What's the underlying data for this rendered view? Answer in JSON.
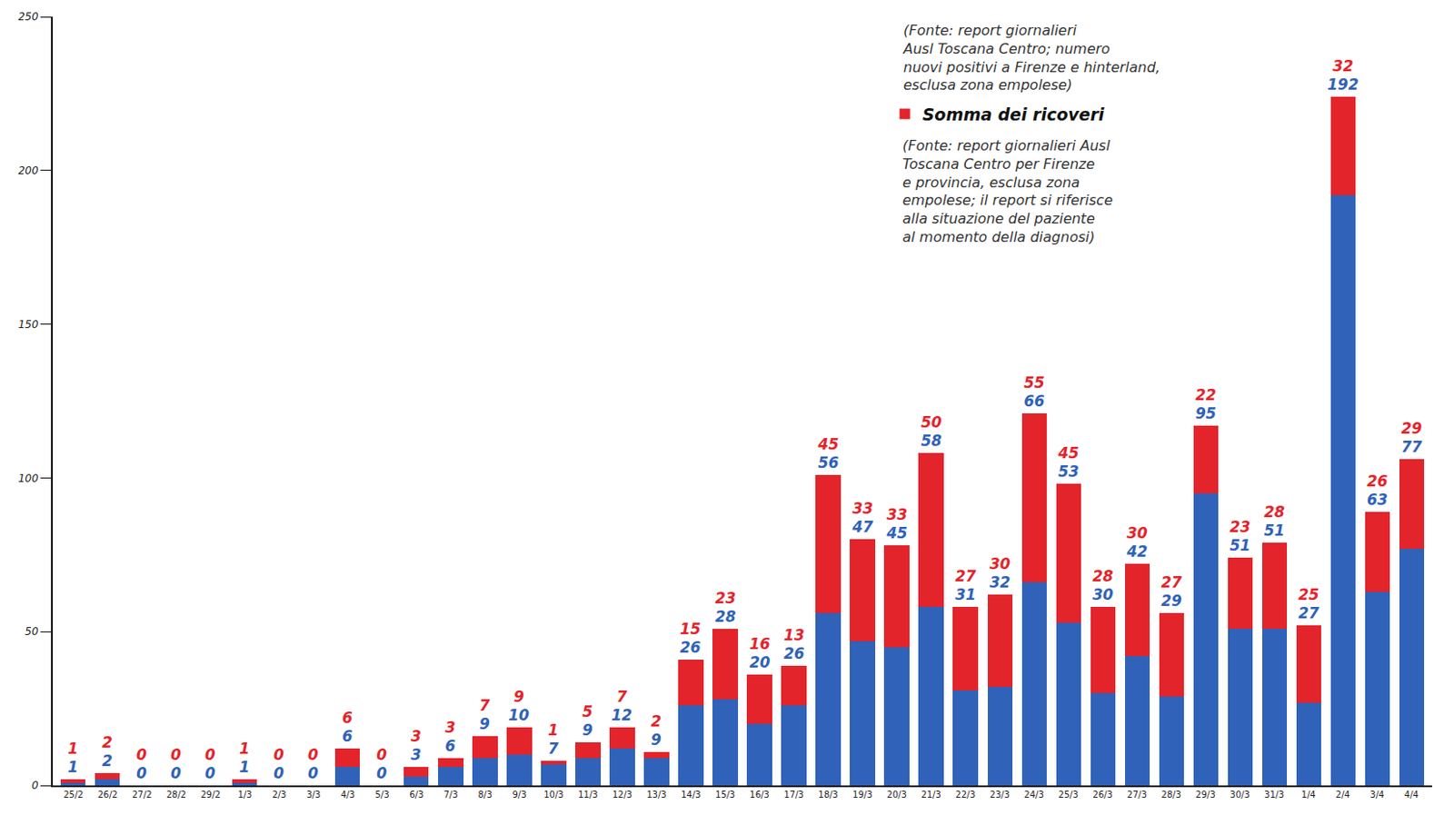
{
  "chart_data": {
    "type": "bar",
    "stacked": true,
    "data_labels": true,
    "grid": false,
    "legend": "top right",
    "categories": [
      "25/2",
      "26/2",
      "27/2",
      "28/2",
      "29/2",
      "1/3",
      "2/3",
      "3/3",
      "4/3",
      "5/3",
      "6/3",
      "7/3",
      "8/3",
      "9/3",
      "10/3",
      "11/3",
      "12/3",
      "13/3",
      "14/3",
      "15/3",
      "16/3",
      "17/3",
      "18/3",
      "19/3",
      "20/3",
      "21/3",
      "22/3",
      "23/3",
      "24/3",
      "25/3",
      "26/3",
      "27/3",
      "28/3",
      "29/3",
      "30/3",
      "31/3",
      "1/4",
      "2/4",
      "3/4",
      "4/4"
    ],
    "series": [
      {
        "color": "#2f62b8",
        "values": [
          1,
          2,
          0,
          0,
          0,
          1,
          0,
          0,
          6,
          0,
          3,
          6,
          9,
          10,
          7,
          9,
          12,
          9,
          26,
          28,
          20,
          26,
          56,
          47,
          45,
          58,
          31,
          32,
          66,
          53,
          30,
          42,
          29,
          95,
          51,
          51,
          27,
          192,
          63,
          77
        ]
      },
      {
        "name": "Somma dei ricoveri",
        "color": "#e3242b",
        "values": [
          1,
          2,
          0,
          0,
          0,
          1,
          0,
          0,
          6,
          0,
          3,
          3,
          7,
          9,
          1,
          5,
          7,
          2,
          15,
          23,
          16,
          13,
          45,
          33,
          33,
          50,
          27,
          30,
          55,
          45,
          28,
          30,
          27,
          22,
          23,
          28,
          25,
          32,
          26,
          29
        ]
      }
    ],
    "annotations": [
      [
        "(Fonte: report giornalieri",
        "Ausl Toscana Centro; numero",
        "nuovi positivi a Firenze e hinterland,",
        "esclusa zona empolese)"
      ],
      [
        "(Fonte: report giornalieri Ausl",
        "Toscana Centro per Firenze",
        "e provincia, esclusa zona",
        "empolese; il report si riferisce",
        "alla situazione del paziente",
        "al momento della diagnosi)"
      ]
    ],
    "ylim": [
      0,
      250
    ],
    "yticks": [
      0,
      50,
      100,
      150,
      200,
      250
    ]
  }
}
